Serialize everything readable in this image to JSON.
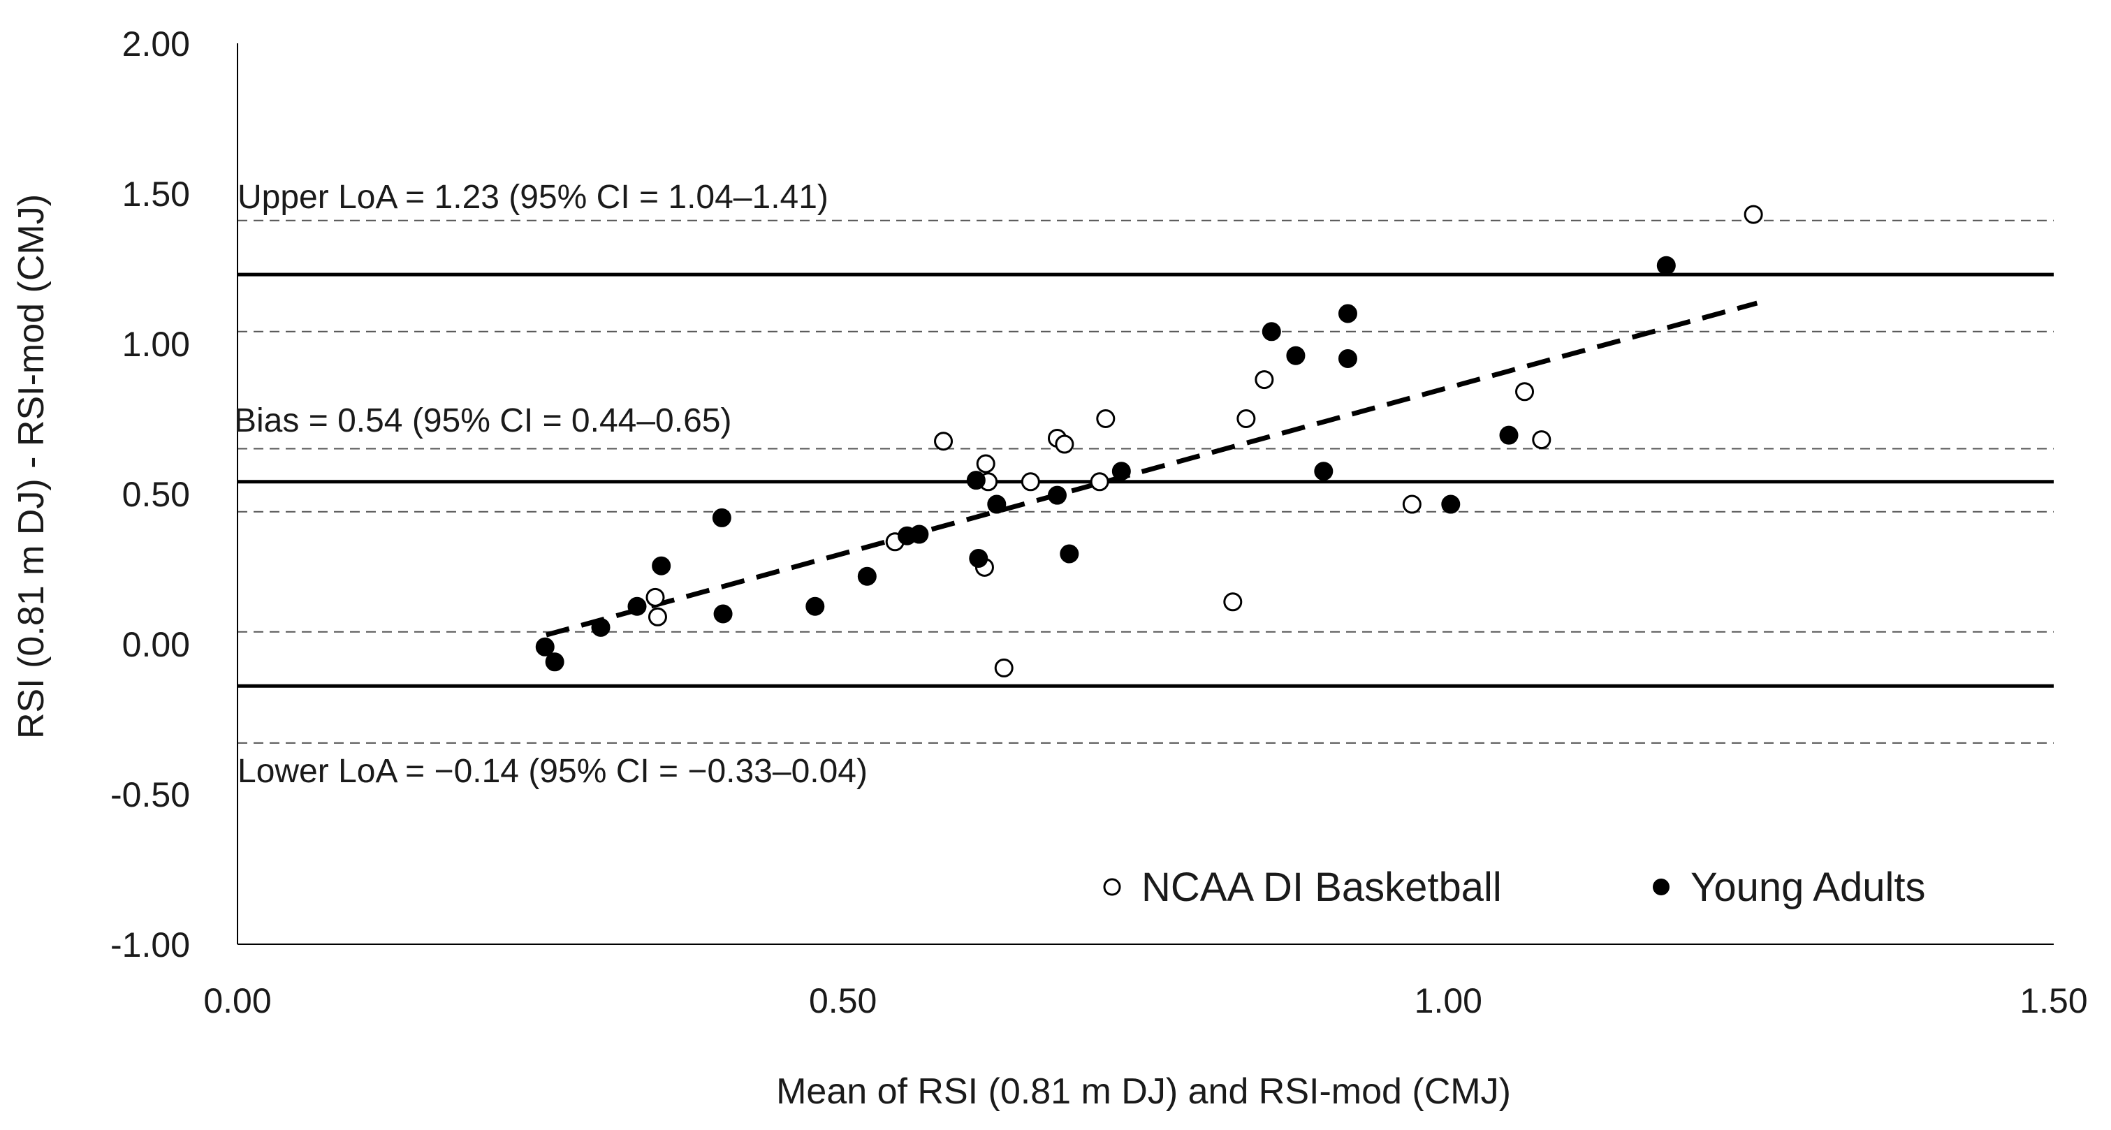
{
  "chart_data": {
    "type": "scatter",
    "title": "",
    "xlabel": "Mean of RSI (0.81 m DJ) and RSI-mod (CMJ)",
    "ylabel": "RSI (0.81 m DJ) - RSI-mod (CMJ)",
    "xlim": [
      0,
      1.5
    ],
    "ylim": [
      -1,
      2
    ],
    "xticks": [
      0,
      0.5,
      1.0,
      1.5
    ],
    "xtick_labels": [
      "0.00",
      "0.50",
      "1.00",
      "1.50"
    ],
    "yticks": [
      -1,
      -0.5,
      0,
      0.5,
      1.0,
      1.5,
      2.0
    ],
    "ytick_labels": [
      "-1.00",
      "-0.50",
      "0.00",
      "0.50",
      "1.00",
      "1.50",
      "2.00"
    ],
    "grid": false,
    "series": [
      {
        "name": "NCAA DI Basketball",
        "marker": "open-circle",
        "points": [
          [
            0.345,
            0.155
          ],
          [
            0.347,
            0.09
          ],
          [
            0.543,
            0.34
          ],
          [
            0.583,
            0.675
          ],
          [
            0.618,
            0.6
          ],
          [
            0.62,
            0.54
          ],
          [
            0.617,
            0.255
          ],
          [
            0.633,
            -0.08
          ],
          [
            0.655,
            0.54
          ],
          [
            0.677,
            0.685
          ],
          [
            0.683,
            0.665
          ],
          [
            0.712,
            0.54
          ],
          [
            0.717,
            0.75
          ],
          [
            0.822,
            0.14
          ],
          [
            0.833,
            0.75
          ],
          [
            0.848,
            0.88
          ],
          [
            0.97,
            0.465
          ],
          [
            1.063,
            0.84
          ],
          [
            1.077,
            0.68
          ],
          [
            1.252,
            1.43
          ]
        ]
      },
      {
        "name": "Young Adults",
        "marker": "filled-circle",
        "points": [
          [
            0.254,
            -0.01
          ],
          [
            0.262,
            -0.06
          ],
          [
            0.3,
            0.055
          ],
          [
            0.33,
            0.125
          ],
          [
            0.35,
            0.26
          ],
          [
            0.4,
            0.42
          ],
          [
            0.401,
            0.1
          ],
          [
            0.477,
            0.125
          ],
          [
            0.52,
            0.225
          ],
          [
            0.553,
            0.36
          ],
          [
            0.563,
            0.365
          ],
          [
            0.61,
            0.545
          ],
          [
            0.612,
            0.285
          ],
          [
            0.627,
            0.465
          ],
          [
            0.677,
            0.495
          ],
          [
            0.687,
            0.3
          ],
          [
            0.73,
            0.575
          ],
          [
            0.854,
            1.04
          ],
          [
            0.874,
            0.96
          ],
          [
            0.897,
            0.575
          ],
          [
            0.917,
            1.1
          ],
          [
            0.917,
            0.95
          ],
          [
            1.002,
            0.465
          ],
          [
            1.05,
            0.695
          ],
          [
            1.18,
            1.26
          ]
        ]
      }
    ],
    "trend_line": {
      "x1": 0.255,
      "y1": 0.03,
      "x2": 1.255,
      "y2": 1.135,
      "style": "dashed"
    },
    "reference_lines": [
      {
        "name": "upper-loa-ci-upper",
        "y": 1.41,
        "style": "thin-dashed"
      },
      {
        "name": "upper-loa",
        "y": 1.23,
        "style": "solid"
      },
      {
        "name": "upper-loa-ci-lower",
        "y": 1.04,
        "style": "thin-dashed"
      },
      {
        "name": "bias-ci-upper",
        "y": 0.65,
        "style": "thin-dashed"
      },
      {
        "name": "bias",
        "y": 0.54,
        "style": "solid"
      },
      {
        "name": "bias-ci-lower",
        "y": 0.44,
        "style": "thin-dashed"
      },
      {
        "name": "lower-loa-ci-upper",
        "y": 0.04,
        "style": "thin-dashed"
      },
      {
        "name": "lower-loa",
        "y": -0.14,
        "style": "solid"
      },
      {
        "name": "lower-loa-ci-lower",
        "y": -0.33,
        "style": "thin-dashed"
      }
    ],
    "annotations": {
      "upper_loa": "Upper LoA = 1.23 (95% CI = 1.04–1.41)",
      "bias": "Bias = 0.54 (95% CI = 0.44–0.65)",
      "lower_loa": "Lower LoA = −0.14 (95% CI = −0.33–0.04)"
    },
    "legend": {
      "position": "bottom-right",
      "entries": [
        "NCAA DI Basketball",
        "Young Adults"
      ]
    }
  }
}
